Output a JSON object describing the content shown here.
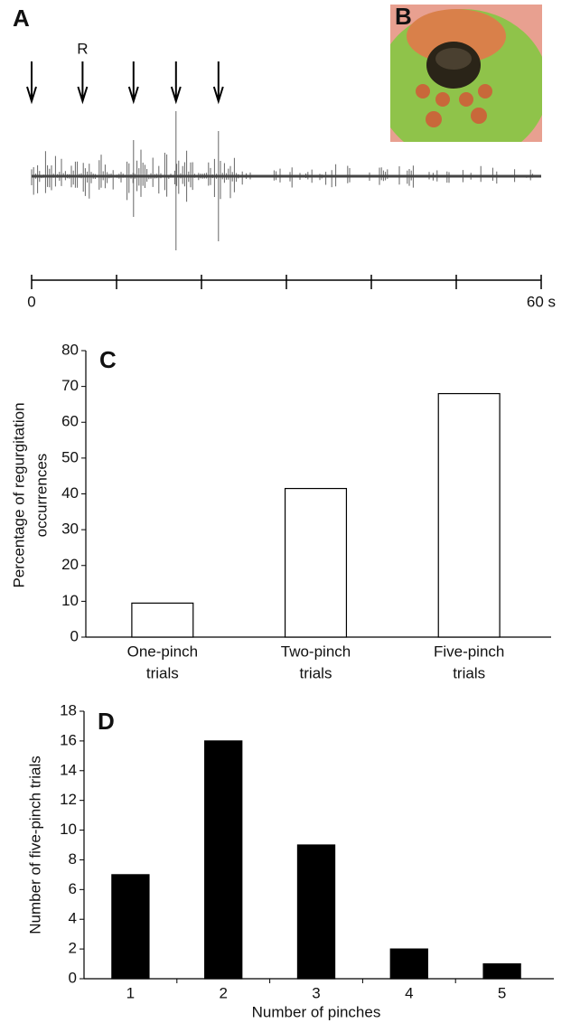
{
  "chart_data": [
    {
      "type": "trace",
      "label": "A",
      "xlim": [
        0,
        60
      ],
      "xticks": [
        {
          "value": 0,
          "label": "0"
        },
        {
          "value": 60,
          "label": "60 s"
        }
      ],
      "minor_xticks": [
        10,
        20,
        30,
        40,
        50
      ],
      "stimuli": [
        0,
        6,
        12,
        17,
        22
      ],
      "annotations": [
        {
          "text": "R",
          "x": 6
        }
      ]
    },
    {
      "type": "bar",
      "label": "C",
      "categories": [
        [
          "One-pinch",
          "trials"
        ],
        [
          "Two-pinch",
          "trials"
        ],
        [
          "Five-pinch",
          "trials"
        ]
      ],
      "values": [
        9.5,
        41.5,
        68
      ],
      "color": "#ffffff",
      "ylim": [
        0,
        80
      ],
      "yticks": [
        0,
        10,
        20,
        30,
        40,
        50,
        60,
        70,
        80
      ],
      "ylabel": [
        "Percentage of regurgitation",
        "occurrences"
      ]
    },
    {
      "type": "bar",
      "label": "D",
      "categories": [
        [
          "1"
        ],
        [
          "2"
        ],
        [
          "3"
        ],
        [
          "4"
        ],
        [
          "5"
        ]
      ],
      "values": [
        7,
        16,
        9,
        2,
        1
      ],
      "color": "#000000",
      "ylim": [
        0,
        18
      ],
      "yticks": [
        0,
        2,
        4,
        6,
        8,
        10,
        12,
        14,
        16,
        18
      ],
      "xlabel": "Number of pinches",
      "ylabel": [
        "Number of five-pinch trials"
      ]
    }
  ],
  "photo": {
    "label": "B"
  }
}
